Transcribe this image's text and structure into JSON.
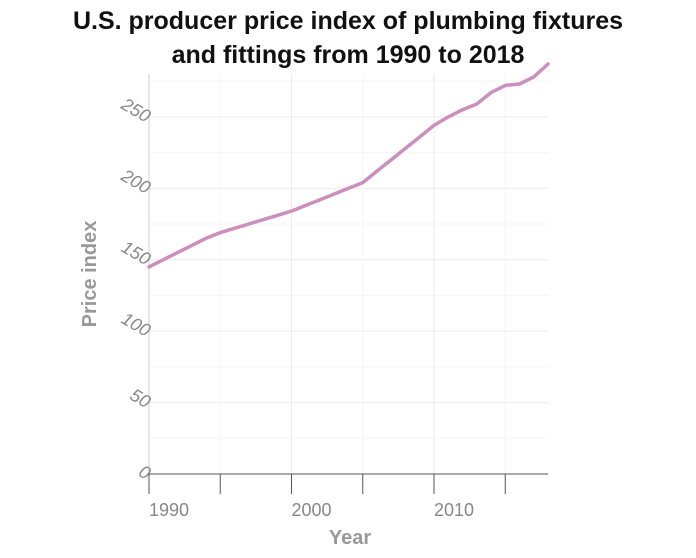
{
  "chart_data": {
    "type": "line",
    "title_lines": [
      "U.S. producer price index of plumbing fixtures",
      "and fittings from 1990 to 2018"
    ],
    "xlabel": "Year",
    "ylabel": "Price index",
    "xlim": [
      1990,
      2018
    ],
    "ylim": [
      0,
      280
    ],
    "x_ticks": [
      1990,
      2000,
      2010
    ],
    "y_ticks": [
      0,
      50,
      100,
      150,
      200,
      250
    ],
    "grid": true,
    "line_color": "#cc8fbd",
    "series": [
      {
        "x": [
          1990,
          1991,
          1992,
          1993,
          1994,
          1995,
          1996,
          1997,
          1998,
          1999,
          2000,
          2001,
          2002,
          2003,
          2004,
          2005,
          2006,
          2007,
          2008,
          2009,
          2010,
          2011,
          2012,
          2013,
          2014,
          2015,
          2016,
          2017,
          2018
        ],
        "values": [
          145,
          150,
          155,
          160,
          165,
          169,
          172,
          175,
          178,
          181,
          184,
          188,
          192,
          196,
          200,
          204,
          212,
          220,
          228,
          236,
          244,
          250,
          255,
          259,
          267,
          272,
          273,
          278,
          287
        ]
      }
    ]
  }
}
